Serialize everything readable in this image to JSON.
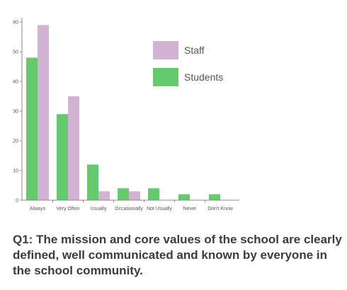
{
  "chart_data": {
    "type": "bar",
    "categories": [
      "Always",
      "Very Often",
      "Usually",
      "Occasionally",
      "Not Usually",
      "Never",
      "Don't Know"
    ],
    "series": [
      {
        "name": "Students",
        "color": "#65c96d",
        "values": [
          48,
          29,
          12,
          4,
          4,
          2,
          2
        ]
      },
      {
        "name": "Staff",
        "color": "#d3b3d4",
        "values": [
          59,
          35,
          3,
          3,
          0,
          0,
          0
        ]
      }
    ],
    "yticks": [
      0,
      10,
      20,
      30,
      40,
      50,
      60
    ],
    "ylim": [
      0,
      61
    ],
    "legend_order": [
      "Staff",
      "Students"
    ],
    "legend_position": "top-right",
    "grid": false
  },
  "caption": "Q1: The mission and core values of the school are clearly defined, well communicated and known by everyone in the school community."
}
